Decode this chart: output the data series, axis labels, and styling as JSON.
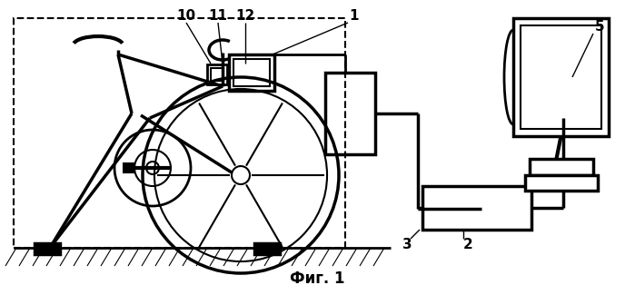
{
  "title": "Фиг. 1",
  "bg_color": "#ffffff",
  "line_color": "#000000",
  "fig_width": 6.99,
  "fig_height": 3.25,
  "dpi": 100
}
